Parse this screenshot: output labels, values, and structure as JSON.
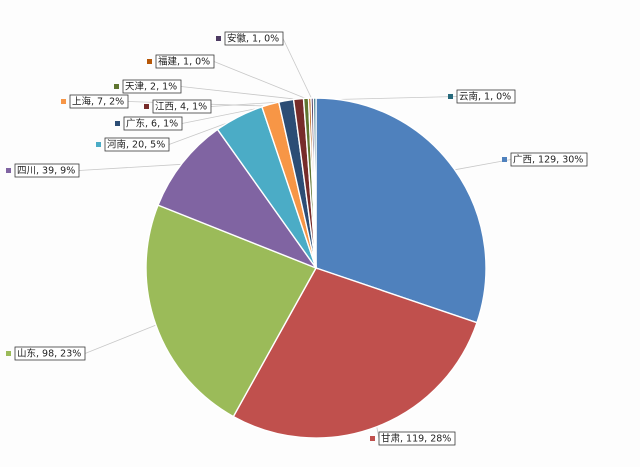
{
  "chart_data": {
    "type": "pie",
    "title": "",
    "start_angle_deg": 0,
    "direction": "clockwise",
    "slices": [
      {
        "name": "广西",
        "value": 129,
        "percent": "30%",
        "label": "广西, 129, 30%",
        "color": "#4F81BD"
      },
      {
        "name": "甘肃",
        "value": 119,
        "percent": "28%",
        "label": "甘肃, 119, 28%",
        "color": "#C0504D"
      },
      {
        "name": "山东",
        "value": 98,
        "percent": "23%",
        "label": "山东, 98, 23%",
        "color": "#9BBB59"
      },
      {
        "name": "四川",
        "value": 39,
        "percent": "9%",
        "label": "四川, 39, 9%",
        "color": "#8064A2"
      },
      {
        "name": "河南",
        "value": 20,
        "percent": "5%",
        "label": "河南, 20, 5%",
        "color": "#4BACC6"
      },
      {
        "name": "上海",
        "value": 7,
        "percent": "2%",
        "label": "上海, 7, 2%",
        "color": "#F79646"
      },
      {
        "name": "广东",
        "value": 6,
        "percent": "1%",
        "label": "广东, 6, 1%",
        "color": "#2C4D75"
      },
      {
        "name": "江西",
        "value": 4,
        "percent": "1%",
        "label": "江西, 4, 1%",
        "color": "#772C2A"
      },
      {
        "name": "天津",
        "value": 2,
        "percent": "1%",
        "label": "天津, 2, 1%",
        "color": "#5F7530"
      },
      {
        "name": "福建",
        "value": 1,
        "percent": "0%",
        "label": "福建, 1, 0%",
        "color": "#B65708"
      },
      {
        "name": "安徽",
        "value": 1,
        "percent": "0%",
        "label": "安徽, 1, 0%",
        "color": "#4D3B62"
      },
      {
        "name": "云南",
        "value": 1,
        "percent": "0%",
        "label": "云南, 1, 0%",
        "color": "#276A7C"
      }
    ]
  }
}
